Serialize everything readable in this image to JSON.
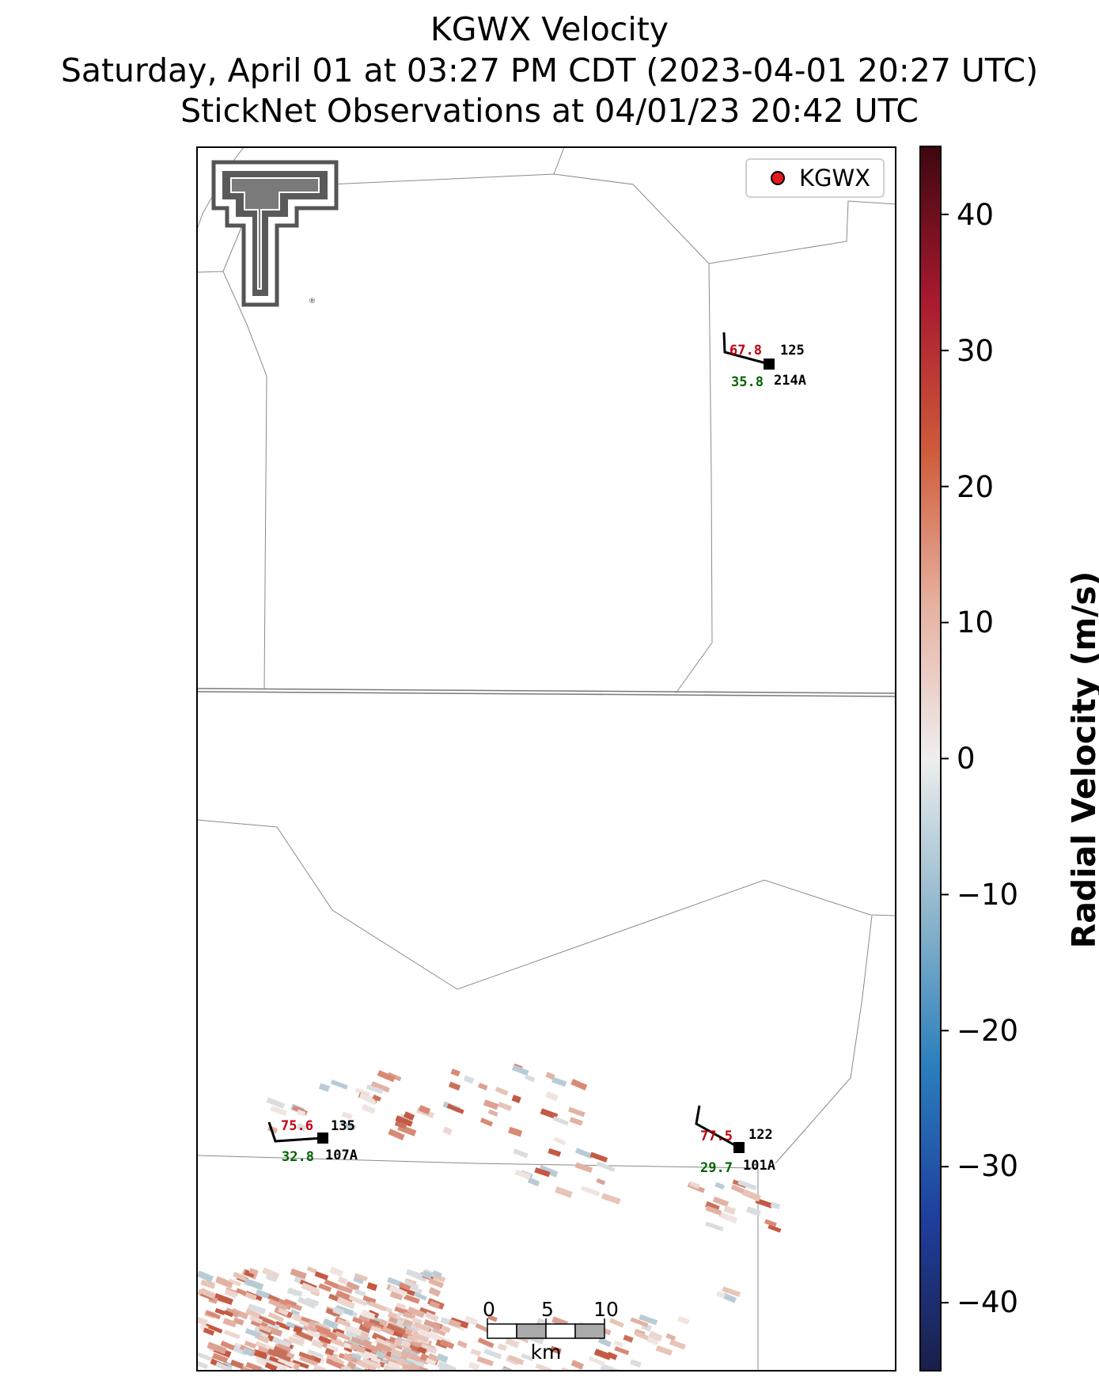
{
  "title": {
    "line1": "KGWX Velocity",
    "line2": "Saturday, April 01 at 03:27 PM CDT (2023-04-01 20:27 UTC)",
    "line3": "StickNet Observations at 04/01/23 20:42 UTC"
  },
  "legend": {
    "label": "KGWX",
    "marker_color": "#e41a1c"
  },
  "colorbar": {
    "label": "Radial Velocity (m/s)",
    "range": [
      -45,
      45
    ],
    "ticks": [
      "40",
      "30",
      "20",
      "10",
      "0",
      "−10",
      "−20",
      "−30",
      "−40"
    ],
    "tick_values": [
      40,
      30,
      20,
      10,
      0,
      -10,
      -20,
      -30,
      -40
    ],
    "colormap": [
      "#1a1f4a",
      "#1e3f9e",
      "#2a7fbd",
      "#8fb7cc",
      "#eeeeee",
      "#e7b1a0",
      "#cf5c3a",
      "#a8192e",
      "#3d0710"
    ]
  },
  "scale_bar": {
    "labels": [
      "0",
      "5",
      "10"
    ],
    "unit": "km"
  },
  "stations": [
    {
      "id": "125",
      "probe": "214A",
      "red_value": "67.8",
      "green_value": "35.8"
    },
    {
      "id": "135",
      "probe": "107A",
      "red_value": "75.6",
      "green_value": "32.8"
    },
    {
      "id": "122",
      "probe": "101A",
      "red_value": "77.5",
      "green_value": "29.7"
    }
  ],
  "logo": {
    "name": "Texas Tech Double T logo",
    "mark": "®"
  }
}
